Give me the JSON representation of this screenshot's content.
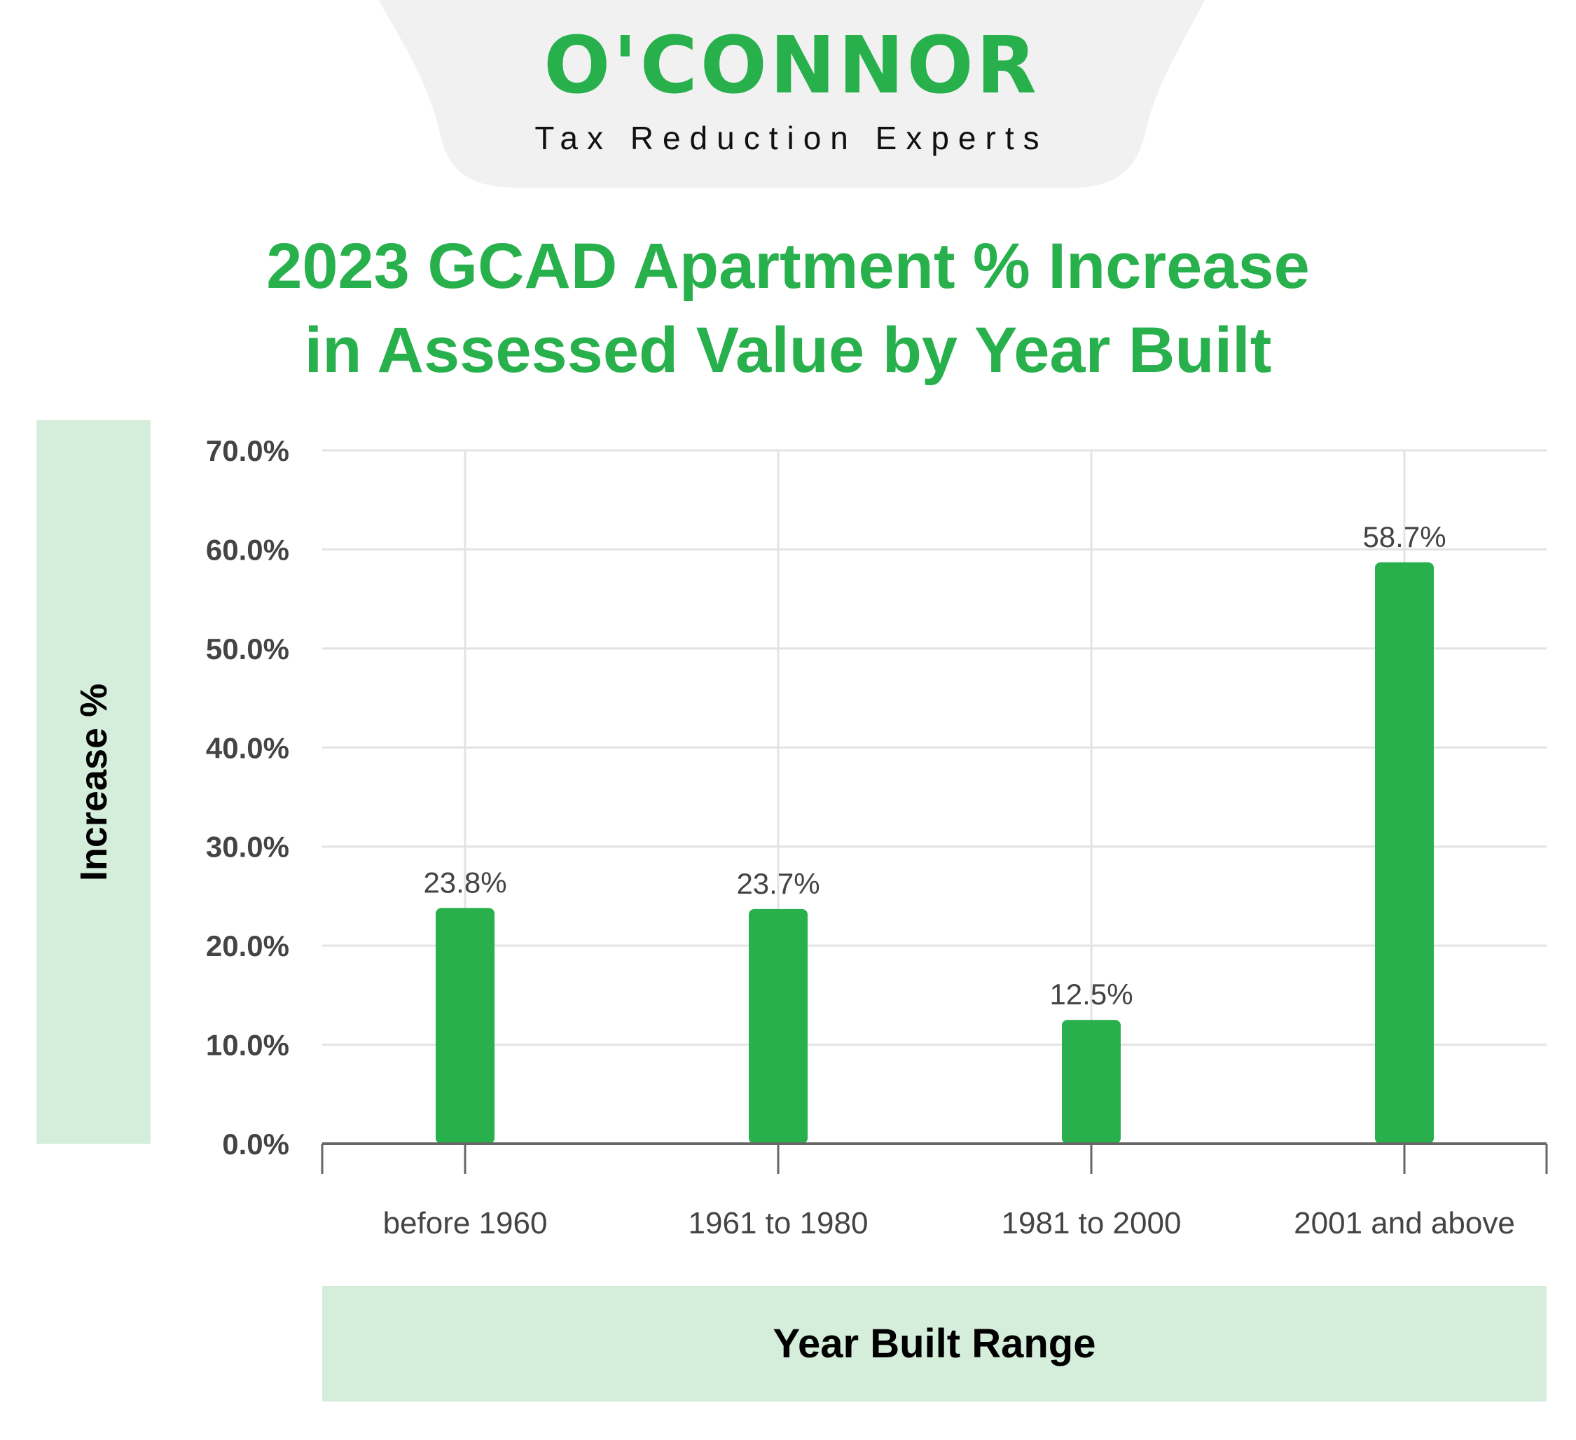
{
  "header": {
    "logo_text": "O'CONNOR",
    "tagline": "Tax Reduction Experts"
  },
  "colors": {
    "brand": "#27b04c",
    "label_panel": "#d5eedb",
    "header_panel": "#f1f1f1",
    "grid": "#e3e3e3",
    "axis": "#666666",
    "tick_text": "#444444"
  },
  "chart_data": {
    "type": "bar",
    "title": [
      "2023 GCAD Apartment % Increase",
      "in Assessed Value by Year Built"
    ],
    "xlabel": "Year Built Range",
    "ylabel": "Increase %",
    "categories": [
      "before 1960",
      "1961 to 1980",
      "1981 to 2000",
      "2001 and above"
    ],
    "values": [
      23.8,
      23.7,
      12.5,
      58.7
    ],
    "value_labels": [
      "23.8%",
      "23.7%",
      "12.5%",
      "58.7%"
    ],
    "ylim": [
      0,
      70
    ],
    "yticks": [
      "0.0%",
      "10.0%",
      "20.0%",
      "30.0%",
      "40.0%",
      "50.0%",
      "60.0%",
      "70.0%"
    ],
    "grid": true
  }
}
